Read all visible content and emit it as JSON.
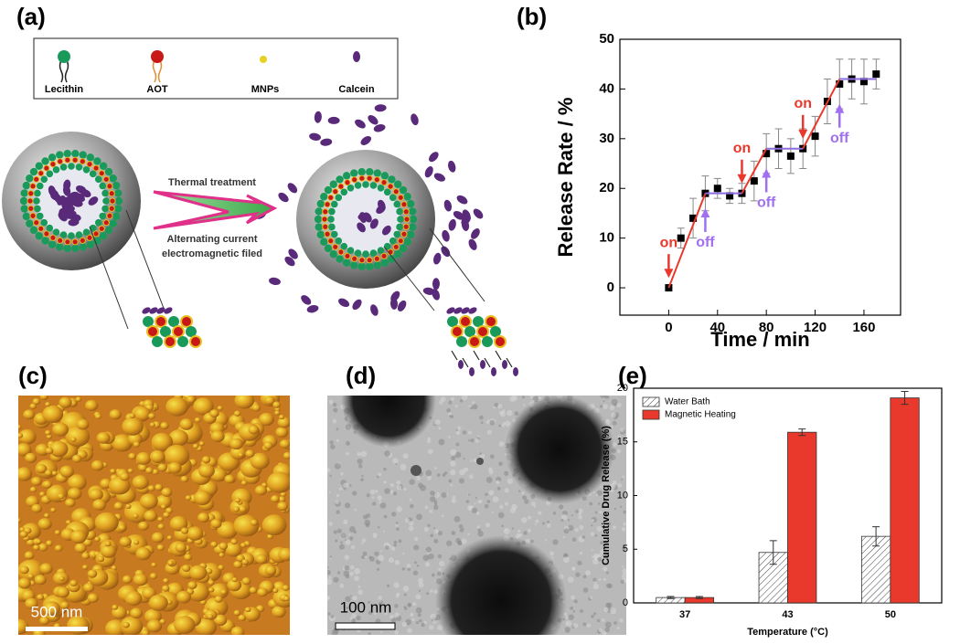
{
  "panel_labels": [
    "(a)",
    "(b)",
    "(c)",
    "(d)",
    "(e)"
  ],
  "diagram": {
    "legend": [
      "Lecithin",
      "AOT",
      "MNPs",
      "Calcein"
    ],
    "arrow_top": "Thermal treatment",
    "arrow_bottom": [
      "Alternating current",
      "electromagnetic filed"
    ]
  },
  "images": {
    "afm_scale": "500 nm",
    "tem_scale": "100 nm"
  },
  "chart_data": [
    {
      "type": "scatter",
      "xlabel": "Time / min",
      "ylabel": "Release Rate / %",
      "xlim": [
        -40,
        190
      ],
      "xticks": [
        0,
        40,
        80,
        120,
        160
      ],
      "ylim": [
        -5.5,
        50
      ],
      "yticks": [
        0,
        10,
        20,
        30,
        40,
        50
      ],
      "series": [
        {
          "style": "markers",
          "color": "#000000",
          "x": [
            0,
            10,
            20,
            30,
            40,
            50,
            60,
            70,
            80,
            90,
            100,
            110,
            120,
            130,
            140,
            150,
            160,
            170
          ],
          "values": [
            0,
            10,
            14,
            19,
            20,
            18.5,
            19,
            21.5,
            27,
            28,
            26.5,
            28,
            30.5,
            37.5,
            41,
            42,
            41.5,
            43
          ],
          "errors": [
            0,
            2,
            4,
            3.5,
            2,
            1.5,
            2,
            4,
            4,
            4,
            3.5,
            4,
            4,
            4.5,
            5,
            4,
            4.5,
            3
          ]
        },
        {
          "style": "line",
          "color": "#e8392c",
          "x": [
            0,
            30
          ],
          "values": [
            0,
            19
          ]
        },
        {
          "style": "line",
          "color": "#8c6ee0",
          "x": [
            30,
            60
          ],
          "values": [
            19,
            19
          ]
        },
        {
          "style": "line",
          "color": "#e8392c",
          "x": [
            60,
            80
          ],
          "values": [
            19,
            28
          ]
        },
        {
          "style": "line",
          "color": "#8c6ee0",
          "x": [
            80,
            110
          ],
          "values": [
            28,
            28
          ]
        },
        {
          "style": "line",
          "color": "#e8392c",
          "x": [
            110,
            140
          ],
          "values": [
            28,
            42
          ]
        },
        {
          "style": "line",
          "color": "#8c6ee0",
          "x": [
            140,
            170
          ],
          "values": [
            42,
            42
          ]
        }
      ],
      "annotations": [
        {
          "text": "on",
          "color": "#e8392c",
          "arrow": "down",
          "x": 0,
          "y": 2
        },
        {
          "text": "off",
          "color": "#a070f0",
          "arrow": "up",
          "x": 30,
          "y": 16
        },
        {
          "text": "on",
          "color": "#e8392c",
          "arrow": "down",
          "x": 60,
          "y": 21
        },
        {
          "text": "off",
          "color": "#a070f0",
          "arrow": "up",
          "x": 80,
          "y": 24
        },
        {
          "text": "on",
          "color": "#e8392c",
          "arrow": "down",
          "x": 110,
          "y": 30
        },
        {
          "text": "off",
          "color": "#a070f0",
          "arrow": "up",
          "x": 140,
          "y": 37
        }
      ]
    },
    {
      "type": "bar",
      "xlabel": "Temperature (°C)",
      "ylabel": "Cumulative Drug Release (%)",
      "categories": [
        "37",
        "43",
        "50"
      ],
      "ylim": [
        0,
        20
      ],
      "yticks": [
        0,
        5,
        10,
        15,
        20
      ],
      "legend": "upper left",
      "series": [
        {
          "name": "Water Bath",
          "color": "#ffffff",
          "pattern": "hatch",
          "values": [
            0.5,
            4.7,
            6.2
          ],
          "errors": [
            0.1,
            1.1,
            0.9
          ]
        },
        {
          "name": "Magnetic Heating",
          "color": "#e8392c",
          "values": [
            0.5,
            15.9,
            19.1
          ],
          "errors": [
            0.1,
            0.3,
            0.6
          ]
        }
      ]
    }
  ]
}
